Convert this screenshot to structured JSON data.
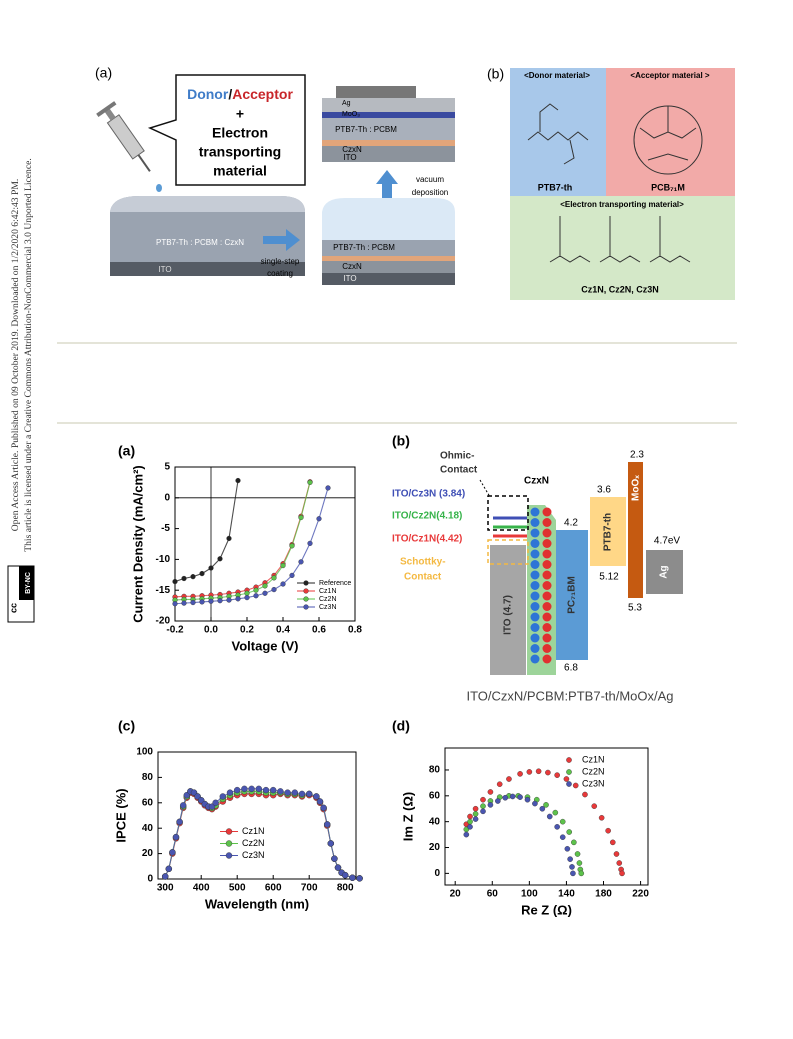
{
  "sidebar": {
    "line1": "Open Access Article. Published on 09 October 2019. Downloaded on 1/2/2020 6:42:43 PM.",
    "line2": "This article is licensed under a Creative Commons Attribution-NonCommercial 3.0 Unported Licence.",
    "badge_cc": "cc",
    "badge": "BY-NC"
  },
  "figure1": {
    "panel_a": "(a)",
    "donor": "Donor",
    "slash": "/",
    "acceptor": "Acceptor",
    "plus": "+",
    "etm_lines": [
      "Electron",
      "transporting",
      "material"
    ],
    "stack1": {
      "blend": "PTB7-Th : PCBM : CzxN",
      "ito": "ITO"
    },
    "step1": [
      "single-step",
      "coating"
    ],
    "stack2": {
      "blend": "PTB7-Th : PCBM",
      "etl": "CzxN",
      "ito": "ITO"
    },
    "step2": [
      "vacuum",
      "deposition"
    ],
    "stack3": {
      "ag": "Ag",
      "moo": "MoO₃",
      "blend": "PTB7-Th : PCBM",
      "etl": "CzxN",
      "ito": "ITO"
    },
    "panel_b": "(b)",
    "donor_title": "<Donor material>",
    "acceptor_title": "<Acceptor material >",
    "donor_name": "PTB7-th",
    "acceptor_name": "PCB₇₁M",
    "etm_title": "<Electron transporting material>",
    "etm_names": "Cz1N, Cz2N, Cz3N"
  },
  "chart_data": [
    {
      "type": "line",
      "panel": "(a)",
      "xlabel": "Voltage (V)",
      "ylabel": "Current Density (mA/cm²)",
      "xlim": [
        -0.2,
        0.8
      ],
      "ylim": [
        -20,
        5
      ],
      "xticks": [
        -0.2,
        {
          "value": 0,
          "label": "0.0"
        },
        0.2,
        0.4,
        0.6,
        0.8
      ],
      "yticks": [
        -20,
        -15,
        -10,
        -5,
        0,
        5
      ],
      "zero_lines": true,
      "legend": "lower right",
      "series": [
        {
          "name": "Reference",
          "color": "#222222",
          "x": [
            -0.2,
            -0.15,
            -0.1,
            -0.05,
            0,
            0.05,
            0.1,
            0.15
          ],
          "values": [
            -13.6,
            -13.1,
            -12.8,
            -12.3,
            -11.4,
            -9.9,
            -6.6,
            2.8
          ]
        },
        {
          "name": "Cz1N",
          "color": "#e8393a",
          "x": [
            -0.2,
            -0.15,
            -0.1,
            -0.05,
            0,
            0.05,
            0.1,
            0.15,
            0.2,
            0.25,
            0.3,
            0.35,
            0.4,
            0.45,
            0.5,
            0.55
          ],
          "values": [
            -16.1,
            -16.0,
            -16.0,
            -15.9,
            -15.8,
            -15.7,
            -15.5,
            -15.3,
            -15.0,
            -14.5,
            -13.8,
            -12.6,
            -10.7,
            -7.6,
            -3.0,
            2.6
          ]
        },
        {
          "name": "Cz2N",
          "color": "#5dc24b",
          "x": [
            -0.2,
            -0.15,
            -0.1,
            -0.05,
            0,
            0.05,
            0.1,
            0.15,
            0.2,
            0.25,
            0.3,
            0.35,
            0.4,
            0.45,
            0.5,
            0.55
          ],
          "values": [
            -16.6,
            -16.5,
            -16.5,
            -16.4,
            -16.3,
            -16.2,
            -16.0,
            -15.8,
            -15.5,
            -15.0,
            -14.3,
            -13.0,
            -11.0,
            -7.8,
            -3.2,
            2.5
          ]
        },
        {
          "name": "Cz3N",
          "color": "#4a56b0",
          "x": [
            -0.2,
            -0.15,
            -0.1,
            -0.05,
            0,
            0.05,
            0.1,
            0.15,
            0.2,
            0.25,
            0.3,
            0.35,
            0.4,
            0.45,
            0.5,
            0.55,
            0.6,
            0.65
          ],
          "values": [
            -17.2,
            -17.1,
            -17.0,
            -16.9,
            -16.8,
            -16.7,
            -16.6,
            -16.4,
            -16.2,
            -15.9,
            -15.5,
            -14.9,
            -14.0,
            -12.6,
            -10.4,
            -7.4,
            -3.4,
            1.6
          ]
        }
      ]
    },
    {
      "type": "line",
      "panel": "(c)",
      "xlabel": "Wavelength (nm)",
      "ylabel": "IPCE (%)",
      "xlim": [
        280,
        830
      ],
      "ylim": [
        0,
        100
      ],
      "xticks": [
        300,
        400,
        500,
        600,
        700,
        800
      ],
      "yticks": [
        0,
        20,
        40,
        60,
        80,
        100
      ],
      "legend": "center left",
      "series": [
        {
          "name": "Cz1N",
          "color": "#e8393a",
          "x": [
            300,
            310,
            320,
            330,
            340,
            350,
            360,
            370,
            380,
            390,
            400,
            410,
            420,
            430,
            440,
            460,
            480,
            500,
            520,
            540,
            560,
            580,
            600,
            620,
            640,
            660,
            680,
            700,
            720,
            730,
            740,
            750,
            760,
            770,
            780,
            790,
            800,
            820,
            840
          ],
          "values": [
            2,
            8,
            20,
            32,
            44,
            56,
            64,
            68,
            67,
            64,
            61,
            58,
            56,
            55,
            57,
            61,
            64,
            66,
            67,
            67,
            67,
            66,
            66,
            67,
            66,
            66,
            65,
            66,
            64,
            60,
            55,
            42,
            28,
            16,
            9,
            5,
            3,
            1,
            0.5
          ]
        },
        {
          "name": "Cz2N",
          "color": "#5dc24b",
          "x": [
            300,
            310,
            320,
            330,
            340,
            350,
            360,
            370,
            380,
            390,
            400,
            410,
            420,
            430,
            440,
            460,
            480,
            500,
            520,
            540,
            560,
            580,
            600,
            620,
            640,
            660,
            680,
            700,
            720,
            730,
            740,
            750,
            760,
            770,
            780,
            790,
            800,
            820,
            840
          ],
          "values": [
            2,
            8,
            21,
            33,
            45,
            57,
            65,
            69,
            68,
            65,
            62,
            59,
            57,
            56,
            58,
            63,
            66,
            68,
            69,
            69,
            69,
            68,
            68,
            68,
            67,
            67,
            66,
            67,
            65,
            61,
            56,
            43,
            28,
            16,
            9,
            5,
            3,
            1,
            0.5
          ]
        },
        {
          "name": "Cz3N",
          "color": "#4a56b0",
          "x": [
            300,
            310,
            320,
            330,
            340,
            350,
            360,
            370,
            380,
            390,
            400,
            410,
            420,
            430,
            440,
            460,
            480,
            500,
            520,
            540,
            560,
            580,
            600,
            620,
            640,
            660,
            680,
            700,
            720,
            730,
            740,
            750,
            760,
            770,
            780,
            790,
            800,
            820,
            840
          ],
          "values": [
            2,
            8,
            21,
            33,
            45,
            58,
            66,
            69,
            68,
            65,
            62,
            59,
            57,
            57,
            60,
            65,
            68,
            70,
            71,
            71,
            71,
            70,
            70,
            69,
            68,
            68,
            67,
            67,
            65,
            61,
            56,
            43,
            28,
            16,
            9,
            5,
            3,
            1,
            0.5
          ]
        }
      ]
    },
    {
      "type": "scatter",
      "panel": "(d)",
      "xlabel": "Re Z (Ω)",
      "ylabel": "Im Z (Ω)",
      "xlim": [
        9,
        228
      ],
      "ylim": [
        -9,
        97
      ],
      "xticks": [
        20,
        60,
        100,
        140,
        180,
        220
      ],
      "yticks": [
        0,
        20,
        40,
        60,
        80
      ],
      "legend": "upper right",
      "series": [
        {
          "name": "Cz1N",
          "color": "#e8393a",
          "x": [
            32,
            36,
            42,
            50,
            58,
            68,
            78,
            90,
            100,
            110,
            120,
            130,
            140,
            150,
            160,
            170,
            178,
            185,
            190,
            194,
            197,
            199,
            200
          ],
          "values": [
            38,
            44,
            50,
            57,
            63,
            69,
            73,
            77,
            78.5,
            79,
            78,
            76,
            73,
            68,
            61,
            52,
            43,
            33,
            24,
            15,
            8,
            3,
            0
          ]
        },
        {
          "name": "Cz2N",
          "color": "#5dc24b",
          "x": [
            32,
            36,
            42,
            50,
            58,
            68,
            78,
            88,
            98,
            108,
            118,
            128,
            136,
            143,
            148,
            152,
            154,
            155,
            156
          ],
          "values": [
            34,
            40,
            46,
            52,
            56,
            59,
            60,
            60,
            59,
            57,
            53,
            47,
            40,
            32,
            24,
            15,
            8,
            3,
            0
          ]
        },
        {
          "name": "Cz3N",
          "color": "#4a56b0",
          "x": [
            32,
            36,
            42,
            50,
            58,
            66,
            74,
            82,
            90,
            98,
            106,
            114,
            122,
            130,
            136,
            141,
            144,
            146,
            147
          ],
          "values": [
            30,
            36,
            42,
            48,
            53,
            56,
            58.5,
            59.5,
            59,
            57,
            54,
            50,
            44,
            36,
            28,
            19,
            11,
            5,
            0
          ]
        }
      ]
    }
  ],
  "energy_diagram": {
    "panel": "(b)",
    "ohmic": [
      "Ohmic-",
      "Contact"
    ],
    "czxn": "CzxN",
    "cz3n": "ITO/Cz3N (3.84)",
    "cz2n": "ITO/Cz2N(4.18)",
    "cz1n": "ITO/Cz1N(4.42)",
    "schottky": [
      "Schottky-",
      "Contact"
    ],
    "ito": "ITO (4.7)",
    "pcbm": "PC₇₁BM",
    "pcbm_lumo": "4.2",
    "pcbm_homo": "6.8",
    "ptb7": "PTB7-th",
    "ptb7_lumo": "3.6",
    "ptb7_homo": "5.12",
    "moox": "MoOₓ",
    "moox_top": "2.3",
    "moox_bottom": "5.3",
    "ag": "Ag",
    "ag_wf": "4.7eV",
    "caption": "ITO/CzxN/PCBM:PTB7-th/MoOx/Ag"
  }
}
